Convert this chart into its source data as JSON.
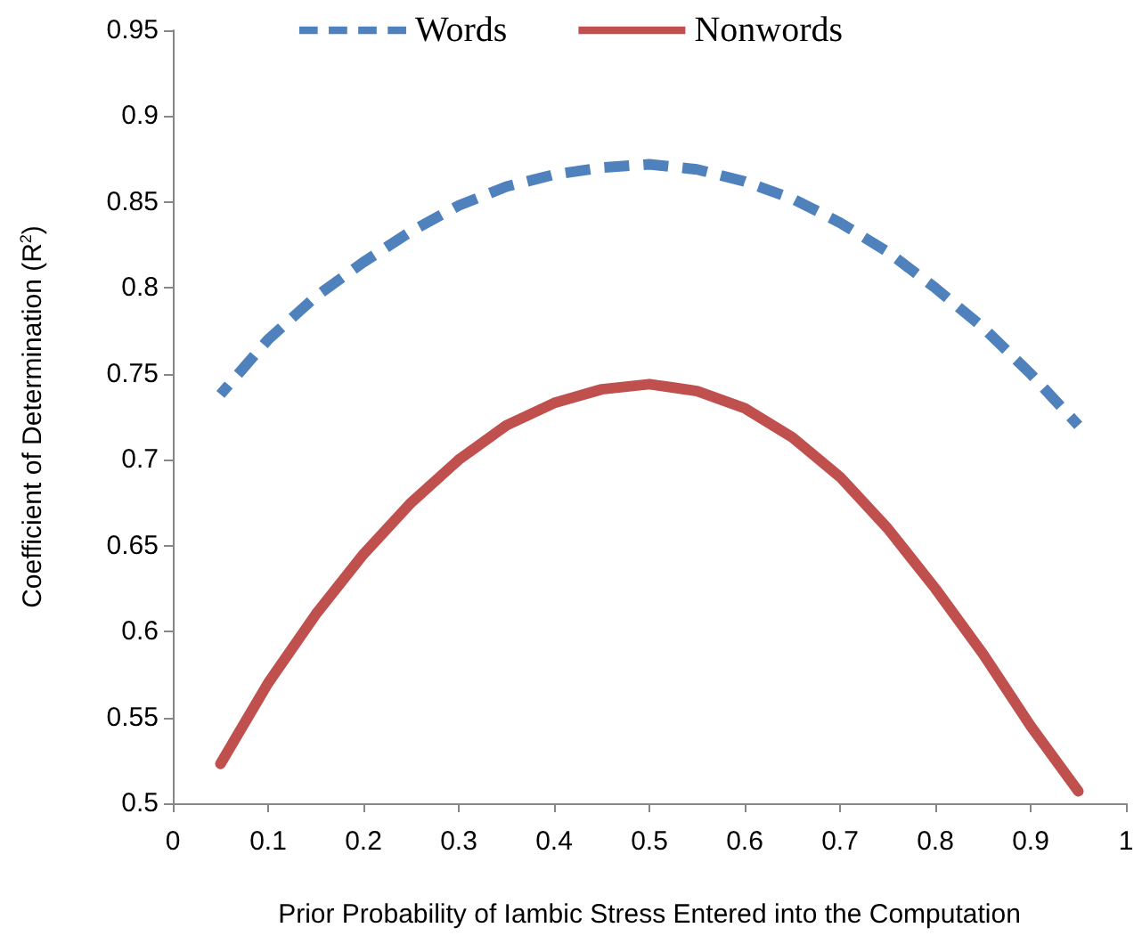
{
  "chart_data": {
    "type": "line",
    "xlabel": "Prior Probability of Iambic Stress Entered into the Computation",
    "ylabel": "Coefficient of Determination (R$^{2}$)",
    "x": [
      0.05,
      0.1,
      0.15,
      0.2,
      0.25,
      0.3,
      0.35,
      0.4,
      0.45,
      0.5,
      0.55,
      0.6,
      0.65,
      0.7,
      0.75,
      0.8,
      0.85,
      0.9,
      0.95
    ],
    "series": [
      {
        "name": "Words",
        "color": "#4f81bd",
        "line_style": "dashed",
        "values": [
          0.738,
          0.77,
          0.795,
          0.815,
          0.833,
          0.848,
          0.859,
          0.866,
          0.87,
          0.872,
          0.869,
          0.862,
          0.852,
          0.838,
          0.821,
          0.8,
          0.777,
          0.75,
          0.72
        ]
      },
      {
        "name": "Nonwords",
        "color": "#c0504d",
        "line_style": "solid",
        "values": [
          0.523,
          0.57,
          0.61,
          0.645,
          0.675,
          0.7,
          0.72,
          0.733,
          0.741,
          0.744,
          0.74,
          0.73,
          0.713,
          0.69,
          0.66,
          0.625,
          0.587,
          0.545,
          0.507
        ]
      }
    ],
    "xlim": [
      0,
      1
    ],
    "xticks": [
      0,
      0.1,
      0.2,
      0.3,
      0.4,
      0.5,
      0.6,
      0.7,
      0.8,
      0.9,
      1
    ],
    "ylim": [
      0.5,
      0.95
    ],
    "yticks": [
      0.5,
      0.55,
      0.6,
      0.65,
      0.7,
      0.75,
      0.8,
      0.85,
      0.9,
      0.95
    ],
    "grid": false,
    "legend": "top",
    "marker": "none"
  }
}
